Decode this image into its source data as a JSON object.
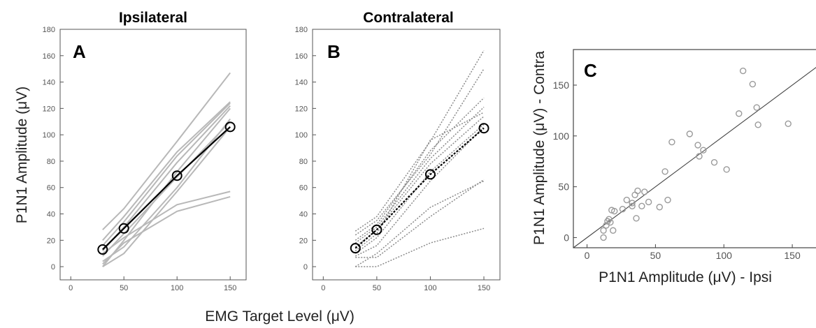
{
  "chart_data": [
    {
      "panel": "A",
      "type": "line",
      "title": "Ipsilateral",
      "xlabel": "EMG Target Level (μV)",
      "ylabel": "P1N1 Amplitude (μV)",
      "xlim": [
        -10,
        165
      ],
      "ylim": [
        -10,
        180
      ],
      "xticks": [
        0,
        50,
        100,
        150
      ],
      "yticks": [
        0,
        20,
        40,
        60,
        80,
        100,
        120,
        140,
        160,
        180
      ],
      "x": [
        30,
        50,
        100,
        150
      ],
      "mean": {
        "values": [
          13,
          29,
          69,
          106
        ],
        "color": "#000000",
        "style": "solid",
        "marker": "open-circle"
      },
      "individual": {
        "color": "#b8b8b8",
        "style": "solid",
        "values": [
          [
            28,
            44,
            95,
            147
          ],
          [
            20,
            38,
            87,
            125
          ],
          [
            16,
            34,
            84,
            124
          ],
          [
            12,
            30,
            79,
            122
          ],
          [
            0,
            20,
            72,
            120
          ],
          [
            8,
            25,
            68,
            110
          ],
          [
            4,
            15,
            60,
            112
          ],
          [
            0,
            10,
            57,
            106
          ],
          [
            10,
            22,
            47,
            57
          ],
          [
            2,
            18,
            42,
            53
          ]
        ]
      }
    },
    {
      "panel": "B",
      "type": "line",
      "title": "Contralateral",
      "xlim": [
        -10,
        165
      ],
      "ylim": [
        -10,
        180
      ],
      "xticks": [
        0,
        50,
        100,
        150
      ],
      "yticks": [
        0,
        20,
        40,
        60,
        80,
        100,
        120,
        140,
        160,
        180
      ],
      "x": [
        30,
        50,
        100,
        150
      ],
      "mean": {
        "values": [
          14,
          28,
          70,
          105
        ],
        "color": "#000000",
        "style": "dotted",
        "marker": "open-circle"
      },
      "individual": {
        "color": "#8a8a8a",
        "style": "dotted",
        "values": [
          [
            27,
            38,
            95,
            164
          ],
          [
            24,
            35,
            85,
            150
          ],
          [
            20,
            32,
            88,
            128
          ],
          [
            18,
            30,
            82,
            121
          ],
          [
            15,
            28,
            78,
            114
          ],
          [
            12,
            25,
            96,
            117
          ],
          [
            10,
            22,
            72,
            108
          ],
          [
            8,
            16,
            65,
            106
          ],
          [
            7,
            7,
            38,
            66
          ],
          [
            0,
            10,
            45,
            65
          ],
          [
            0,
            0,
            18,
            29
          ]
        ]
      }
    },
    {
      "panel": "C",
      "type": "scatter",
      "xlabel": "P1N1 Amplitude (μV) - Ipsi",
      "ylabel": "P1N1 Amplitude (μV) - Contra",
      "xlim": [
        -10,
        175
      ],
      "ylim": [
        -10,
        185
      ],
      "xticks": [
        0,
        50,
        100,
        150
      ],
      "yticks": [
        0,
        50,
        100,
        150
      ],
      "reference_line": "identity (y = x)",
      "marker": {
        "shape": "open-circle",
        "color": "#9a9a9a"
      },
      "points": [
        [
          12,
          0
        ],
        [
          12,
          7
        ],
        [
          14,
          12
        ],
        [
          15,
          16
        ],
        [
          16,
          18
        ],
        [
          17,
          15
        ],
        [
          18,
          27
        ],
        [
          20,
          26
        ],
        [
          19,
          7
        ],
        [
          26,
          28
        ],
        [
          29,
          37
        ],
        [
          33,
          31
        ],
        [
          33,
          34
        ],
        [
          35,
          42
        ],
        [
          36,
          19
        ],
        [
          37,
          46
        ],
        [
          40,
          31
        ],
        [
          42,
          45
        ],
        [
          45,
          35
        ],
        [
          53,
          30
        ],
        [
          57,
          65
        ],
        [
          59,
          37
        ],
        [
          62,
          94
        ],
        [
          75,
          102
        ],
        [
          81,
          91
        ],
        [
          82,
          80
        ],
        [
          85,
          86
        ],
        [
          93,
          74
        ],
        [
          102,
          67
        ],
        [
          111,
          122
        ],
        [
          114,
          164
        ],
        [
          121,
          151
        ],
        [
          124,
          128
        ],
        [
          125,
          111
        ],
        [
          147,
          112
        ]
      ]
    }
  ]
}
